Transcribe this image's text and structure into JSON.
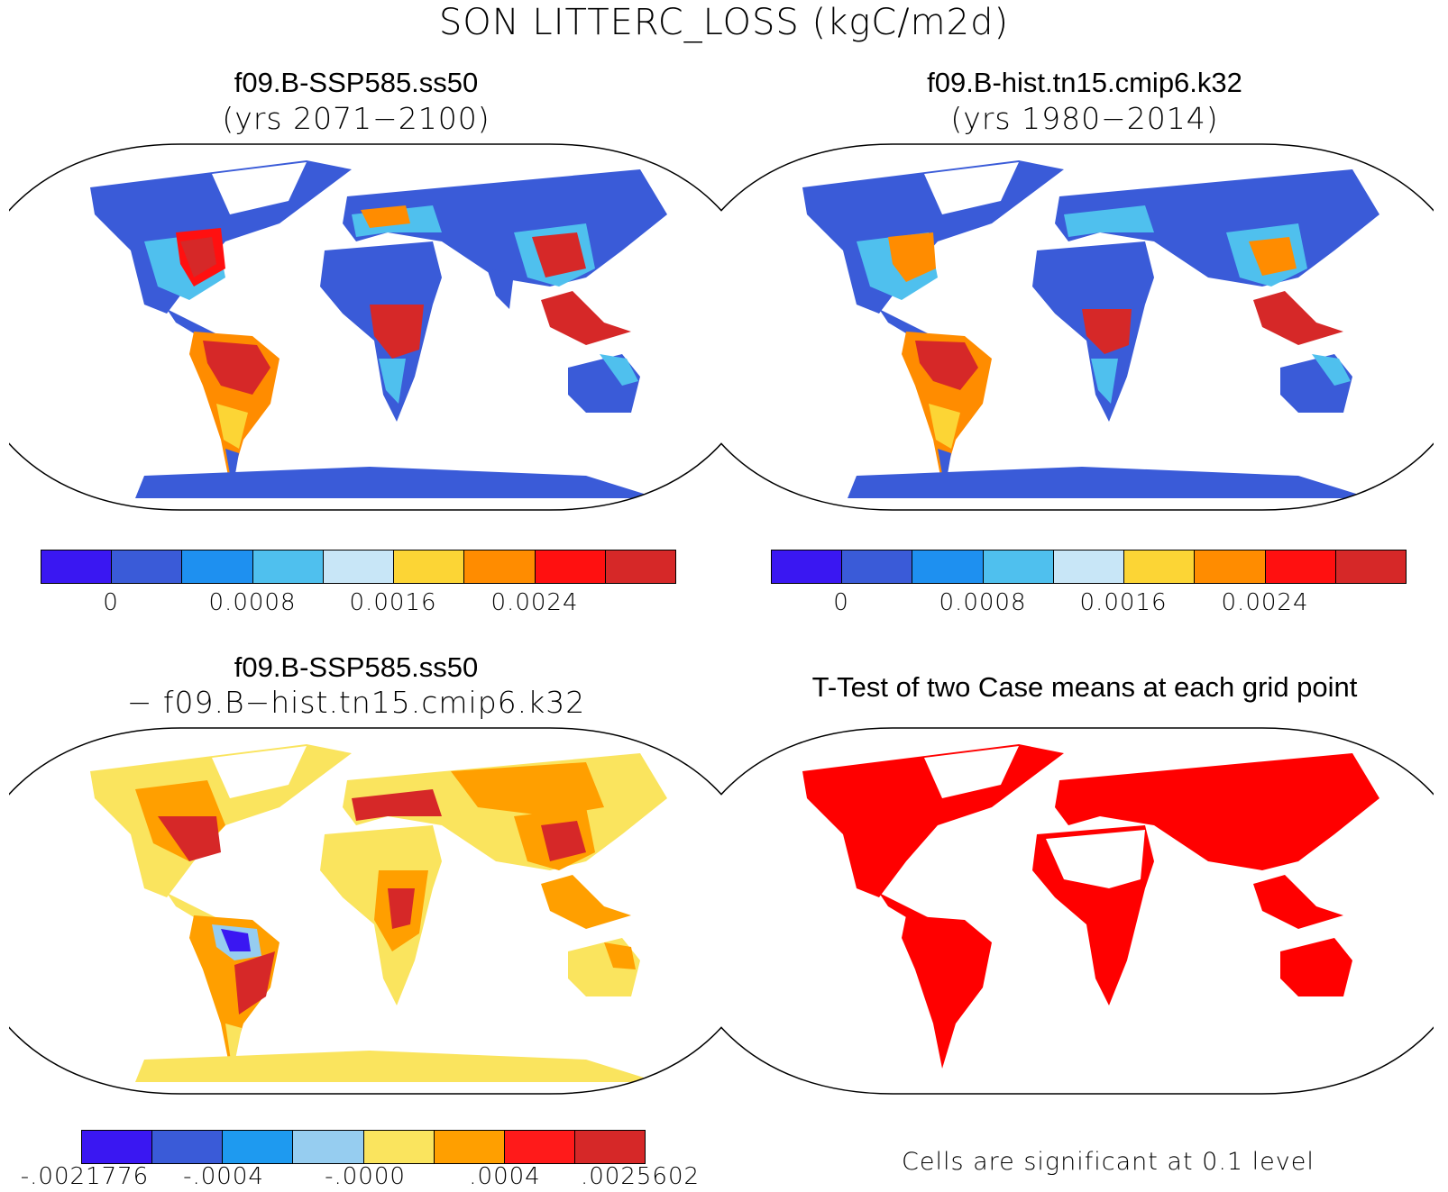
{
  "title": "SON LITTERC_LOSS (kgC/m2d)",
  "panels": {
    "top_left": {
      "title": "f09.B-SSP585.ss50",
      "subtitle": "(yrs 2071−2100)"
    },
    "top_right": {
      "title": "f09.B-hist.tn15.cmip6.k32",
      "subtitle": "(yrs 1980−2014)"
    },
    "bottom_left": {
      "title": "f09.B-SSP585.ss50",
      "subtitle": "− f09.B−hist.tn15.cmip6.k32"
    },
    "bottom_right": {
      "title": "T-Test of two Case means at each grid point",
      "note": "Cells are significant at 0.1 level"
    }
  },
  "colorbars": {
    "mean": {
      "colors": [
        "#3a17f2",
        "#3a5bd8",
        "#1e90f0",
        "#4fc0ee",
        "#c8e6f7",
        "#fcd535",
        "#ff8c00",
        "#ff1010",
        "#d62828"
      ],
      "tick_labels": [
        "0",
        "0.0008",
        "0.0016",
        "0.0024"
      ]
    },
    "diff": {
      "colors": [
        "#3a17f2",
        "#3a5bd8",
        "#1e9af0",
        "#96cdf0",
        "#fae45e",
        "#ff9f00",
        "#ff1a1a",
        "#d62828"
      ],
      "tick_labels": [
        "-.0021776",
        "-.0004",
        "-.0000",
        ".0004",
        ".0025602"
      ]
    }
  },
  "map_colors": {
    "ocean": "#ffffff",
    "coast": "#000000",
    "significant": "#ff0000"
  }
}
